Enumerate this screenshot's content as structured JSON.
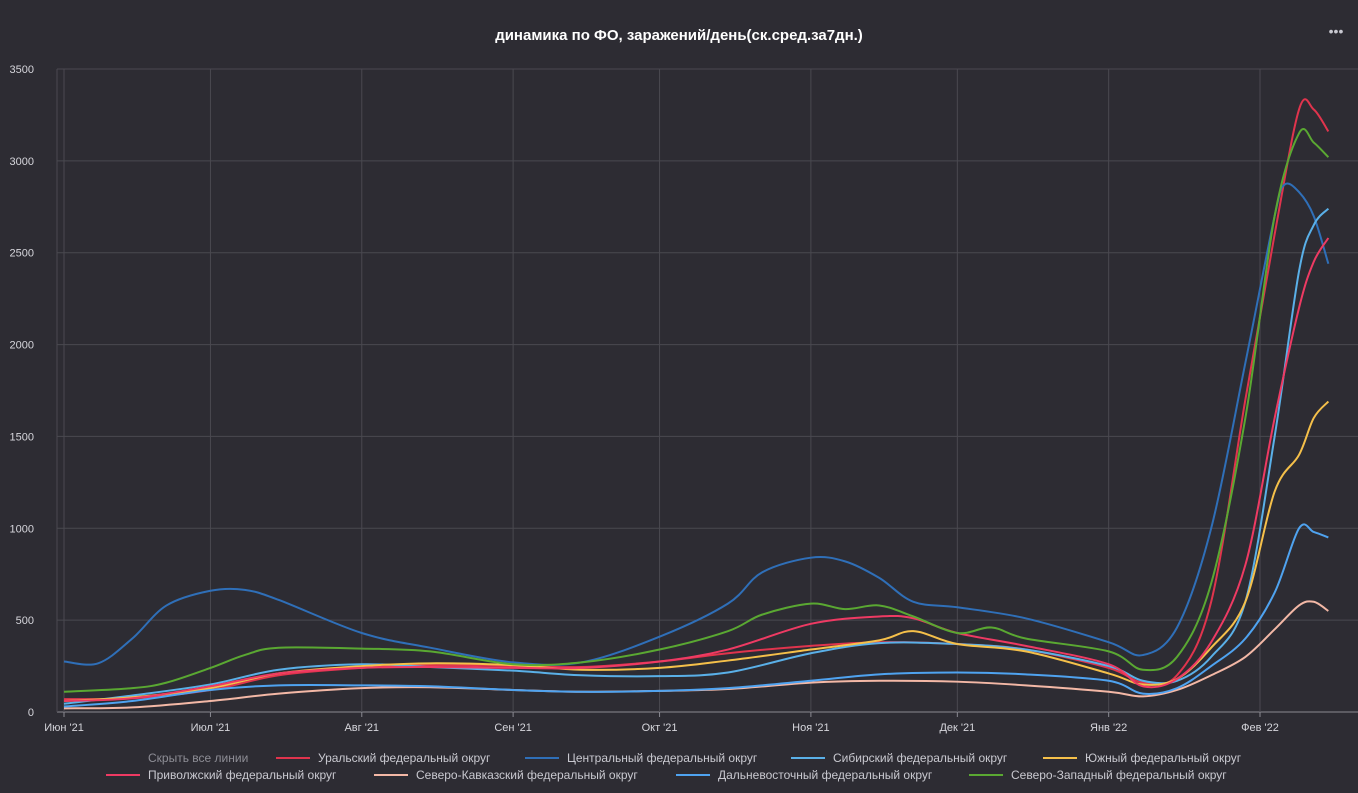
{
  "title": "динамика по ФО, заражений/день(ск.сред.за7дн.)",
  "menu_icon": "more-dots-icon",
  "legend": {
    "hide_all_label": "Скрыть все линии"
  },
  "chart_data": {
    "type": "line",
    "title": "динамика по ФО, заражений/день(ск.сред.за7дн.)",
    "x_axis": {
      "type": "date",
      "range": [
        "2021-06-01",
        "2022-02-15"
      ],
      "ticks": [
        {
          "date": "2021-06-01",
          "label": "Июн '21"
        },
        {
          "date": "2021-07-01",
          "label": "Июл '21"
        },
        {
          "date": "2021-08-01",
          "label": "Авг '21"
        },
        {
          "date": "2021-09-01",
          "label": "Сен '21"
        },
        {
          "date": "2021-10-01",
          "label": "Окт '21"
        },
        {
          "date": "2021-11-01",
          "label": "Ноя '21"
        },
        {
          "date": "2021-12-01",
          "label": "Дек '21"
        },
        {
          "date": "2022-01-01",
          "label": "Янв '22"
        },
        {
          "date": "2022-02-01",
          "label": "Фев '22"
        }
      ]
    },
    "y_axis": {
      "range": [
        0,
        3500
      ],
      "ticks": [
        0,
        500,
        1000,
        1500,
        2000,
        2500,
        3000,
        3500
      ]
    },
    "grid": true,
    "legend_position": "bottom",
    "series": [
      {
        "name": "Уральский федеральный округ",
        "color": "#e0344d",
        "points": [
          [
            "2021-06-01",
            70
          ],
          [
            "2021-06-15",
            75
          ],
          [
            "2021-07-01",
            120
          ],
          [
            "2021-07-15",
            200
          ],
          [
            "2021-08-01",
            240
          ],
          [
            "2021-08-15",
            255
          ],
          [
            "2021-09-01",
            250
          ],
          [
            "2021-09-15",
            245
          ],
          [
            "2021-10-01",
            275
          ],
          [
            "2021-10-15",
            320
          ],
          [
            "2021-11-01",
            360
          ],
          [
            "2021-11-15",
            380
          ],
          [
            "2021-12-01",
            370
          ],
          [
            "2021-12-15",
            340
          ],
          [
            "2022-01-01",
            240
          ],
          [
            "2022-01-08",
            160
          ],
          [
            "2022-01-15",
            200
          ],
          [
            "2022-01-22",
            600
          ],
          [
            "2022-01-29",
            1700
          ],
          [
            "2022-02-04",
            2600
          ],
          [
            "2022-02-09",
            3280
          ],
          [
            "2022-02-12",
            3280
          ],
          [
            "2022-02-15",
            3160
          ]
        ]
      },
      {
        "name": "Центральный федеральный округ",
        "color": "#2f6fb8",
        "points": [
          [
            "2021-06-01",
            275
          ],
          [
            "2021-06-08",
            265
          ],
          [
            "2021-06-15",
            400
          ],
          [
            "2021-06-22",
            580
          ],
          [
            "2021-07-01",
            660
          ],
          [
            "2021-07-08",
            665
          ],
          [
            "2021-07-15",
            610
          ],
          [
            "2021-08-01",
            430
          ],
          [
            "2021-08-15",
            350
          ],
          [
            "2021-09-01",
            270
          ],
          [
            "2021-09-15",
            270
          ],
          [
            "2021-10-01",
            410
          ],
          [
            "2021-10-15",
            590
          ],
          [
            "2021-10-22",
            760
          ],
          [
            "2021-11-01",
            840
          ],
          [
            "2021-11-08",
            820
          ],
          [
            "2021-11-15",
            730
          ],
          [
            "2021-11-22",
            600
          ],
          [
            "2021-12-01",
            570
          ],
          [
            "2021-12-15",
            510
          ],
          [
            "2022-01-01",
            380
          ],
          [
            "2022-01-08",
            310
          ],
          [
            "2022-01-15",
            460
          ],
          [
            "2022-01-22",
            1000
          ],
          [
            "2022-01-29",
            1900
          ],
          [
            "2022-02-04",
            2700
          ],
          [
            "2022-02-06",
            2870
          ],
          [
            "2022-02-09",
            2830
          ],
          [
            "2022-02-12",
            2700
          ],
          [
            "2022-02-15",
            2440
          ]
        ]
      },
      {
        "name": "Сибирский федеральный округ",
        "color": "#5ab0e8",
        "points": [
          [
            "2021-06-01",
            45
          ],
          [
            "2021-06-15",
            90
          ],
          [
            "2021-07-01",
            150
          ],
          [
            "2021-07-15",
            230
          ],
          [
            "2021-08-01",
            260
          ],
          [
            "2021-08-15",
            245
          ],
          [
            "2021-09-01",
            225
          ],
          [
            "2021-09-15",
            200
          ],
          [
            "2021-10-01",
            195
          ],
          [
            "2021-10-15",
            215
          ],
          [
            "2021-11-01",
            320
          ],
          [
            "2021-11-15",
            375
          ],
          [
            "2021-12-01",
            370
          ],
          [
            "2021-12-15",
            340
          ],
          [
            "2022-01-01",
            250
          ],
          [
            "2022-01-08",
            170
          ],
          [
            "2022-01-15",
            170
          ],
          [
            "2022-01-22",
            300
          ],
          [
            "2022-01-29",
            600
          ],
          [
            "2022-02-04",
            1500
          ],
          [
            "2022-02-09",
            2400
          ],
          [
            "2022-02-12",
            2650
          ],
          [
            "2022-02-15",
            2740
          ]
        ]
      },
      {
        "name": "Южный федеральный округ",
        "color": "#f5c04a",
        "points": [
          [
            "2021-06-01",
            60
          ],
          [
            "2021-06-15",
            80
          ],
          [
            "2021-07-01",
            130
          ],
          [
            "2021-07-15",
            210
          ],
          [
            "2021-08-01",
            250
          ],
          [
            "2021-08-15",
            265
          ],
          [
            "2021-09-01",
            255
          ],
          [
            "2021-09-15",
            230
          ],
          [
            "2021-10-01",
            240
          ],
          [
            "2021-10-15",
            280
          ],
          [
            "2021-11-01",
            340
          ],
          [
            "2021-11-15",
            390
          ],
          [
            "2021-11-22",
            440
          ],
          [
            "2021-12-01",
            370
          ],
          [
            "2021-12-15",
            330
          ],
          [
            "2022-01-01",
            210
          ],
          [
            "2022-01-08",
            150
          ],
          [
            "2022-01-15",
            180
          ],
          [
            "2022-01-22",
            350
          ],
          [
            "2022-01-29",
            600
          ],
          [
            "2022-02-04",
            1200
          ],
          [
            "2022-02-09",
            1400
          ],
          [
            "2022-02-12",
            1600
          ],
          [
            "2022-02-15",
            1690
          ]
        ]
      },
      {
        "name": "Приволжский федеральный округ",
        "color": "#ee3a63",
        "points": [
          [
            "2021-06-01",
            60
          ],
          [
            "2021-06-15",
            75
          ],
          [
            "2021-07-01",
            140
          ],
          [
            "2021-07-15",
            210
          ],
          [
            "2021-08-01",
            240
          ],
          [
            "2021-08-15",
            245
          ],
          [
            "2021-09-01",
            240
          ],
          [
            "2021-09-15",
            240
          ],
          [
            "2021-10-01",
            275
          ],
          [
            "2021-10-15",
            340
          ],
          [
            "2021-11-01",
            480
          ],
          [
            "2021-11-15",
            520
          ],
          [
            "2021-11-22",
            510
          ],
          [
            "2021-12-01",
            430
          ],
          [
            "2021-12-15",
            360
          ],
          [
            "2022-01-01",
            260
          ],
          [
            "2022-01-08",
            140
          ],
          [
            "2022-01-15",
            180
          ],
          [
            "2022-01-22",
            380
          ],
          [
            "2022-01-29",
            800
          ],
          [
            "2022-02-04",
            1600
          ],
          [
            "2022-02-09",
            2200
          ],
          [
            "2022-02-12",
            2450
          ],
          [
            "2022-02-15",
            2580
          ]
        ]
      },
      {
        "name": "Северо-Кавказский федеральный округ",
        "color": "#f3b8a6",
        "points": [
          [
            "2021-06-01",
            20
          ],
          [
            "2021-06-15",
            25
          ],
          [
            "2021-07-01",
            60
          ],
          [
            "2021-07-15",
            100
          ],
          [
            "2021-08-01",
            130
          ],
          [
            "2021-08-15",
            135
          ],
          [
            "2021-09-01",
            120
          ],
          [
            "2021-09-15",
            110
          ],
          [
            "2021-10-01",
            115
          ],
          [
            "2021-10-15",
            125
          ],
          [
            "2021-11-01",
            160
          ],
          [
            "2021-11-15",
            170
          ],
          [
            "2021-12-01",
            165
          ],
          [
            "2021-12-15",
            145
          ],
          [
            "2022-01-01",
            110
          ],
          [
            "2022-01-08",
            85
          ],
          [
            "2022-01-15",
            120
          ],
          [
            "2022-01-22",
            200
          ],
          [
            "2022-01-29",
            300
          ],
          [
            "2022-02-04",
            450
          ],
          [
            "2022-02-09",
            580
          ],
          [
            "2022-02-12",
            600
          ],
          [
            "2022-02-15",
            550
          ]
        ]
      },
      {
        "name": "Дальневосточный федеральный округ",
        "color": "#4fa3f0",
        "points": [
          [
            "2021-06-01",
            30
          ],
          [
            "2021-06-15",
            60
          ],
          [
            "2021-07-01",
            120
          ],
          [
            "2021-07-15",
            145
          ],
          [
            "2021-08-01",
            145
          ],
          [
            "2021-08-15",
            140
          ],
          [
            "2021-09-01",
            120
          ],
          [
            "2021-09-15",
            110
          ],
          [
            "2021-10-01",
            115
          ],
          [
            "2021-10-15",
            130
          ],
          [
            "2021-11-01",
            170
          ],
          [
            "2021-11-15",
            205
          ],
          [
            "2021-12-01",
            215
          ],
          [
            "2021-12-15",
            205
          ],
          [
            "2022-01-01",
            170
          ],
          [
            "2022-01-08",
            100
          ],
          [
            "2022-01-15",
            130
          ],
          [
            "2022-01-22",
            250
          ],
          [
            "2022-01-29",
            400
          ],
          [
            "2022-02-04",
            650
          ],
          [
            "2022-02-09",
            1000
          ],
          [
            "2022-02-12",
            980
          ],
          [
            "2022-02-15",
            950
          ]
        ]
      },
      {
        "name": "Северо-Западный федеральный округ",
        "color": "#5aa832",
        "points": [
          [
            "2021-06-01",
            110
          ],
          [
            "2021-06-15",
            130
          ],
          [
            "2021-06-22",
            160
          ],
          [
            "2021-07-01",
            240
          ],
          [
            "2021-07-08",
            310
          ],
          [
            "2021-07-15",
            350
          ],
          [
            "2021-08-01",
            345
          ],
          [
            "2021-08-15",
            330
          ],
          [
            "2021-09-01",
            260
          ],
          [
            "2021-09-15",
            270
          ],
          [
            "2021-10-01",
            340
          ],
          [
            "2021-10-15",
            440
          ],
          [
            "2021-10-22",
            530
          ],
          [
            "2021-11-01",
            590
          ],
          [
            "2021-11-08",
            560
          ],
          [
            "2021-11-15",
            580
          ],
          [
            "2021-11-22",
            520
          ],
          [
            "2021-12-01",
            430
          ],
          [
            "2021-12-08",
            460
          ],
          [
            "2021-12-15",
            400
          ],
          [
            "2022-01-01",
            330
          ],
          [
            "2022-01-08",
            230
          ],
          [
            "2022-01-15",
            300
          ],
          [
            "2022-01-22",
            700
          ],
          [
            "2022-01-29",
            1600
          ],
          [
            "2022-02-04",
            2700
          ],
          [
            "2022-02-09",
            3150
          ],
          [
            "2022-02-12",
            3100
          ],
          [
            "2022-02-15",
            3020
          ]
        ]
      }
    ]
  }
}
